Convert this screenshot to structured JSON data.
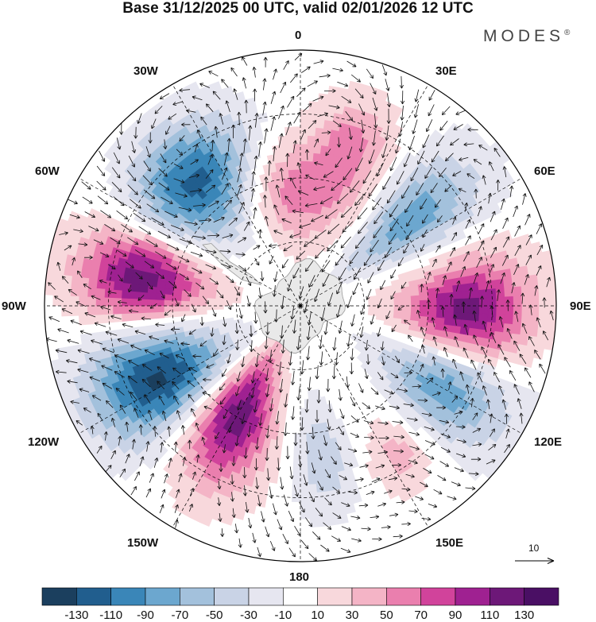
{
  "title": "Base 31/12/2025 00 UTC, valid 02/01/2026 12 UTC",
  "brand": "MODES",
  "brand_mark": "®",
  "longitude_labels": {
    "lon_0": "0",
    "lon_30e": "30E",
    "lon_60e": "60E",
    "lon_90e": "90E",
    "lon_120e": "120E",
    "lon_150e": "150E",
    "lon_180": "180",
    "lon_150w": "150W",
    "lon_120w": "120W",
    "lon_90w": "90W",
    "lon_60w": "60W",
    "lon_30w": "30W"
  },
  "reference_vector_label": "10",
  "colorbar": {
    "ticks": [
      "-130",
      "-110",
      "-90",
      "-70",
      "-50",
      "-30",
      "-10",
      "10",
      "30",
      "50",
      "70",
      "90",
      "110",
      "130"
    ],
    "colors": [
      "#1b3f5e",
      "#215e8e",
      "#3a86b8",
      "#6ca7cf",
      "#a3c1dc",
      "#c9d3e6",
      "#e6e6f0",
      "#ffffff",
      "#f8d8dc",
      "#f4b4c6",
      "#ea7fae",
      "#d1439b",
      "#9f2191",
      "#6d1878",
      "#4a0f64"
    ]
  },
  "anomaly_centers": [
    {
      "id": "neg-30w",
      "lon": -40,
      "colat": 25,
      "value": -120,
      "spread_lon": 22,
      "spread_colat": 9
    },
    {
      "id": "pos-0",
      "lon": 0,
      "colat": 18,
      "value": 65,
      "spread_lon": 28,
      "spread_colat": 8
    },
    {
      "id": "pos-15e",
      "lon": 18,
      "colat": 27,
      "value": 50,
      "spread_lon": 12,
      "spread_colat": 7
    },
    {
      "id": "neg-50e",
      "lon": 52,
      "colat": 22,
      "value": -85,
      "spread_lon": 14,
      "spread_colat": 12
    },
    {
      "id": "pos-90e",
      "lon": 93,
      "colat": 26,
      "value": 125,
      "spread_lon": 18,
      "spread_colat": 10
    },
    {
      "id": "neg-120e",
      "lon": 118,
      "colat": 26,
      "value": -95,
      "spread_lon": 16,
      "spread_colat": 11
    },
    {
      "id": "pos-150e",
      "lon": 146,
      "colat": 28,
      "value": 40,
      "spread_lon": 10,
      "spread_colat": 6
    },
    {
      "id": "neg-170e",
      "lon": 172,
      "colat": 24,
      "value": -45,
      "spread_lon": 10,
      "spread_colat": 9
    },
    {
      "id": "pos-150w",
      "lon": -150,
      "colat": 20,
      "value": 125,
      "spread_lon": 16,
      "spread_colat": 11
    },
    {
      "id": "neg-120w",
      "lon": -117,
      "colat": 25,
      "value": -135,
      "spread_lon": 18,
      "spread_colat": 11
    },
    {
      "id": "pos-80w",
      "lon": -80,
      "colat": 25,
      "value": 125,
      "spread_lon": 16,
      "spread_colat": 10
    }
  ]
}
